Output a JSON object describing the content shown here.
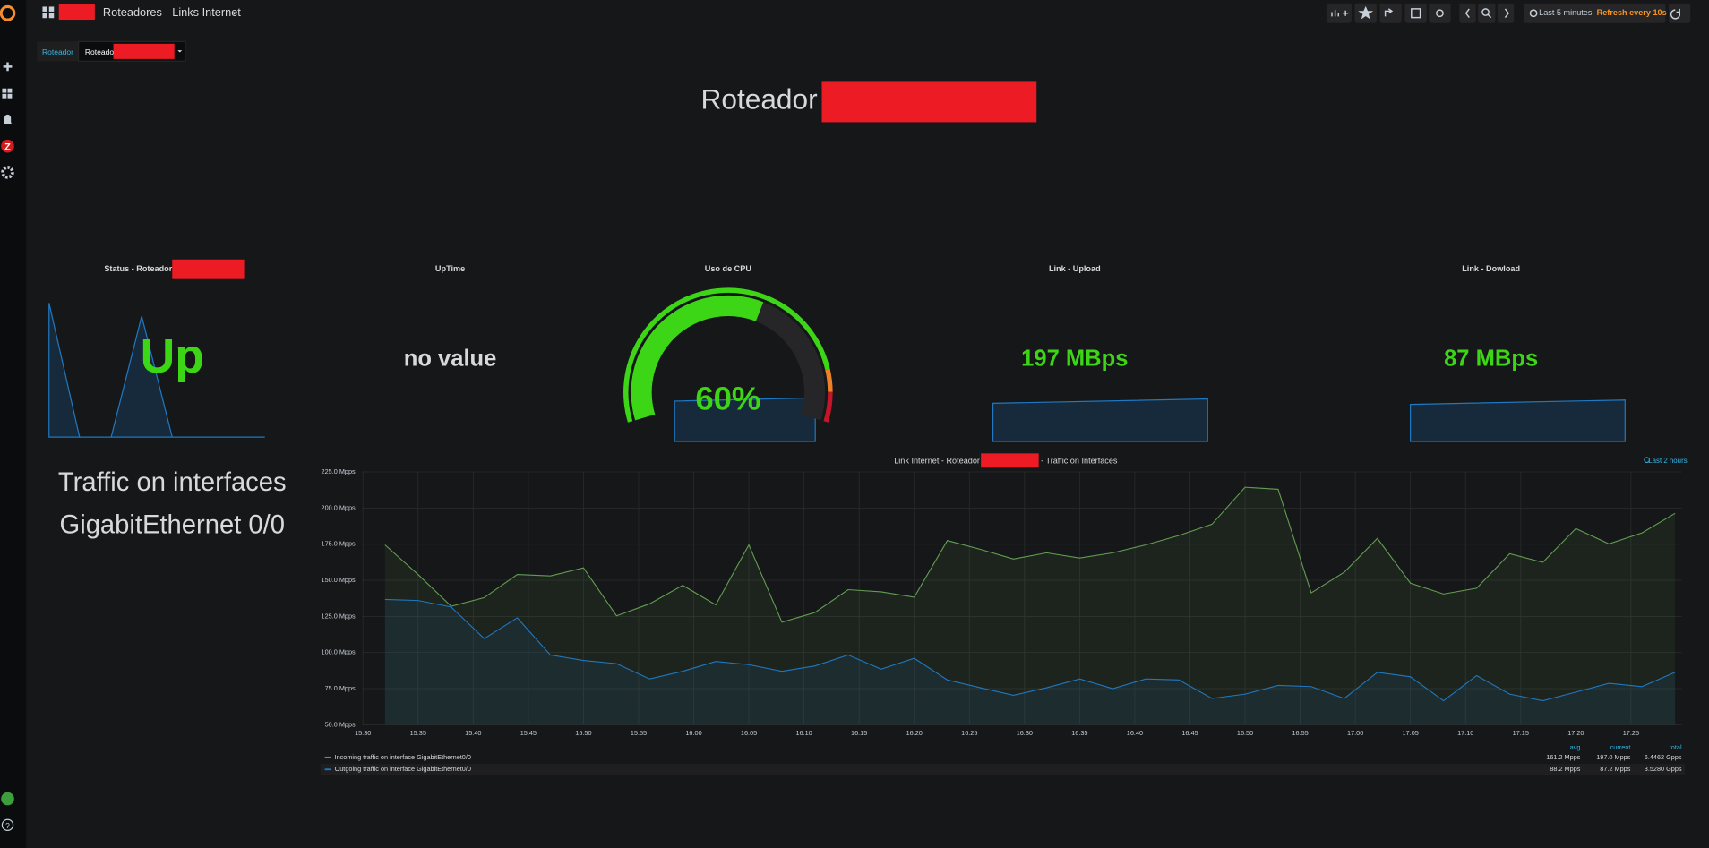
{
  "header": {
    "dashboard_title": "- Roteadores - Links Internet",
    "time_range": "Last 5 minutes",
    "refresh": "Refresh every 10s"
  },
  "variable": {
    "label": "Roteador",
    "value": "Roteado"
  },
  "title_panel": {
    "text": "Roteador"
  },
  "panels": {
    "status": {
      "title": "Status - Roteador",
      "value": "Up"
    },
    "uptime": {
      "title": "UpTime",
      "value": "no value"
    },
    "cpu": {
      "title": "Uso de CPU",
      "value": 60,
      "value_label": "60%",
      "range": [
        0,
        100
      ],
      "color": "#3dd617",
      "thresholds": [
        {
          "value": 0,
          "color": "#3dd617"
        },
        {
          "value": 86,
          "color": "#ed8128"
        },
        {
          "value": 92,
          "color": "#c4162a"
        }
      ]
    },
    "upload": {
      "title": "Link - Upload",
      "value": "197 MBps"
    },
    "download": {
      "title": "Link - Dowload",
      "value": "87 MBps"
    }
  },
  "text_panel": {
    "lines": [
      "Traffic on interfaces",
      "GigabitEthernet 0/0"
    ]
  },
  "chart_data": {
    "type": "line",
    "title": "Link Internet - Roteador",
    "title_suffix": "- Traffic on Interfaces",
    "time_info": "Last 2 hours",
    "x": [
      "15:32",
      "15:35",
      "15:38",
      "15:41",
      "15:44",
      "15:47",
      "15:50",
      "15:53",
      "15:56",
      "15:59",
      "16:02",
      "16:05",
      "16:08",
      "16:11",
      "16:14",
      "16:17",
      "16:20",
      "16:23",
      "16:26",
      "16:29",
      "16:32",
      "16:35",
      "16:38",
      "16:41",
      "16:44",
      "16:47",
      "16:50",
      "16:53",
      "16:56",
      "16:59",
      "17:02",
      "17:05",
      "17:08",
      "17:11",
      "17:14",
      "17:17",
      "17:20",
      "17:23",
      "17:26",
      "17:29"
    ],
    "series": [
      {
        "name": "Incoming traffic on interface GigabitEthernet0/0",
        "color": "#629e51",
        "values": [
          174.5,
          154,
          132,
          138,
          154,
          153,
          158.6,
          125.4,
          133.7,
          146.5,
          133,
          174.5,
          121,
          127.7,
          143.5,
          142,
          138.3,
          177.5,
          171.4,
          164.7,
          169,
          165.4,
          169,
          174.5,
          181,
          188.8,
          214.4,
          213,
          141.3,
          155.6,
          179,
          148,
          140.5,
          144.5,
          168.4,
          162.4,
          185.8,
          175.2,
          182.8,
          196.3
        ]
      },
      {
        "name": "Outgoing traffic on interface GigabitEthernet0/0",
        "color": "#1f78c1",
        "values": [
          136.7,
          136,
          131.5,
          109.6,
          124,
          98.3,
          94.5,
          92.3,
          81.7,
          87,
          93.8,
          91.6,
          87,
          90.7,
          98.3,
          88.5,
          96,
          81,
          75.6,
          70.4,
          75.6,
          81.7,
          75,
          81.7,
          81,
          68.2,
          71.2,
          77.2,
          76.4,
          68.2,
          86.3,
          83.2,
          66.6,
          84,
          71.2,
          66.6,
          72.6,
          78.7,
          76.4,
          86.3
        ]
      }
    ],
    "xlim": [
      "15:30",
      "17:30"
    ],
    "xticks": [
      "15:30",
      "15:35",
      "15:40",
      "15:45",
      "15:50",
      "15:55",
      "16:00",
      "16:05",
      "16:10",
      "16:15",
      "16:20",
      "16:25",
      "16:30",
      "16:35",
      "16:40",
      "16:45",
      "16:50",
      "16:55",
      "17:00",
      "17:05",
      "17:10",
      "17:15",
      "17:20",
      "17:25"
    ],
    "ylim": [
      50,
      225
    ],
    "yticks": [
      {
        "value": 50,
        "label": "50.0 Mpps"
      },
      {
        "value": 75,
        "label": "75.0 Mpps"
      },
      {
        "value": 100,
        "label": "100.0 Mpps"
      },
      {
        "value": 125,
        "label": "125.0 Mpps"
      },
      {
        "value": 150,
        "label": "150.0 Mpps"
      },
      {
        "value": 175,
        "label": "175.0 Mpps"
      },
      {
        "value": 200,
        "label": "200.0 Mpps"
      },
      {
        "value": 225,
        "label": "225.0 Mpps"
      }
    ],
    "grid": true,
    "legend_columns": [
      "avg",
      "current",
      "total"
    ],
    "legend_values": [
      [
        "161.2 Mpps",
        "197.0 Mpps",
        "6.4462 Gpps"
      ],
      [
        "88.2 Mpps",
        "87.2 Mpps",
        "3.5280 Gpps"
      ]
    ]
  }
}
